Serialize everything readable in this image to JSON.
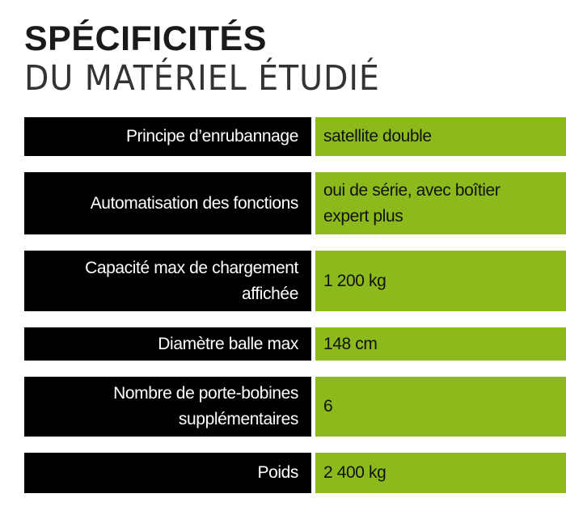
{
  "header": {
    "title": "SPÉCIFICITÉS",
    "subtitle": "DU MATÉRIEL ÉTUDIÉ"
  },
  "table": {
    "rows": [
      {
        "label": [
          "Principe d’enrubannage"
        ],
        "value": [
          "satellite double"
        ]
      },
      {
        "label": [
          "Automatisation des fonctions"
        ],
        "value": [
          "oui de série, avec boîtier",
          "expert plus"
        ]
      },
      {
        "label": [
          "Capacité max de chargement",
          "affichée"
        ],
        "value": [
          "1 200 kg"
        ]
      },
      {
        "label": [
          "Diamètre balle max"
        ],
        "value": [
          "148 cm"
        ]
      },
      {
        "label": [
          "Nombre de porte-bobines",
          "supplémentaires"
        ],
        "value": [
          "6"
        ]
      },
      {
        "label": [
          "Poids"
        ],
        "value": [
          "2 400 kg"
        ]
      }
    ]
  }
}
